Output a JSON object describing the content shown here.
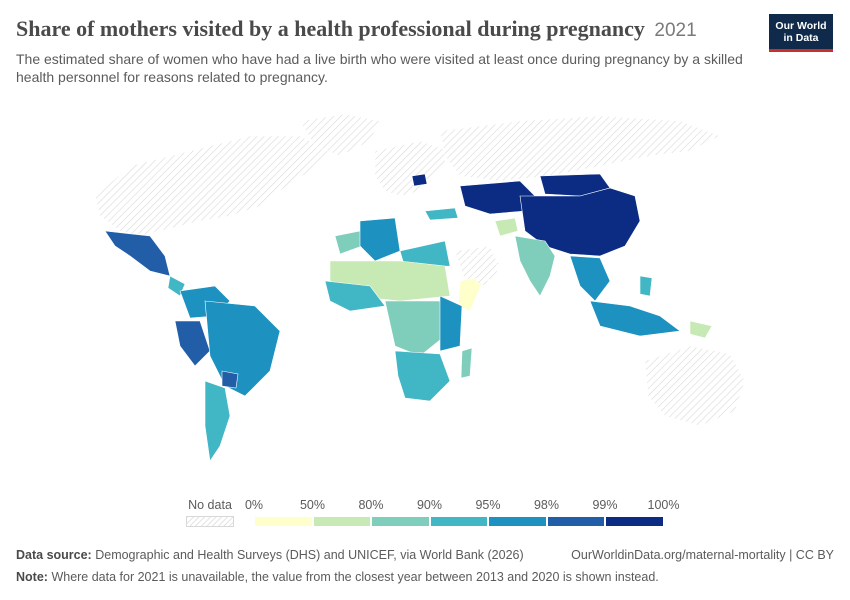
{
  "header": {
    "title": "Share of mothers visited by a health professional during pregnancy",
    "year": "2021",
    "subtitle": "The estimated share of women who have had a live birth who were visited at least once during pregnancy by a skilled health personnel for reasons related to pregnancy."
  },
  "logo": {
    "line1": "Our World",
    "line2": "in Data"
  },
  "legend": {
    "no_data_label": "No data",
    "ticks": [
      "0%",
      "50%",
      "80%",
      "90%",
      "95%",
      "98%",
      "99%",
      "100%"
    ],
    "bins": [
      {
        "from": 0,
        "to": 50,
        "color": "#ffffcc"
      },
      {
        "from": 50,
        "to": 80,
        "color": "#c7e9b4"
      },
      {
        "from": 80,
        "to": 90,
        "color": "#7fcdbb"
      },
      {
        "from": 90,
        "to": 95,
        "color": "#41b6c4"
      },
      {
        "from": 95,
        "to": 98,
        "color": "#1d91c0"
      },
      {
        "from": 98,
        "to": 99,
        "color": "#225ea8"
      },
      {
        "from": 99,
        "to": 100,
        "color": "#0c2c84"
      }
    ],
    "no_data_color": "#e6e6e6"
  },
  "chart_data": {
    "type": "choropleth",
    "unit": "%",
    "regions": [
      {
        "name": "China",
        "bin": "99-100%"
      },
      {
        "name": "Mongolia",
        "bin": "99-100%"
      },
      {
        "name": "Kazakhstan",
        "bin": "99-100%"
      },
      {
        "name": "Belarus",
        "bin": "99-100%"
      },
      {
        "name": "Mexico",
        "bin": "98-99%"
      },
      {
        "name": "Peru",
        "bin": "98-99%"
      },
      {
        "name": "Paraguay",
        "bin": "98-99%"
      },
      {
        "name": "Brazil",
        "bin": "95-98%"
      },
      {
        "name": "Colombia",
        "bin": "95-98%"
      },
      {
        "name": "Algeria",
        "bin": "95-98%"
      },
      {
        "name": "Indonesia",
        "bin": "95-98%"
      },
      {
        "name": "Argentina",
        "bin": "90-95%"
      },
      {
        "name": "South Africa",
        "bin": "90-95%"
      },
      {
        "name": "India",
        "bin": "80-90%"
      },
      {
        "name": "Morocco",
        "bin": "80-90%"
      },
      {
        "name": "Madagascar",
        "bin": "80-90%"
      },
      {
        "name": "Afghanistan",
        "bin": "50-80%"
      },
      {
        "name": "Chad",
        "bin": "50-80%"
      },
      {
        "name": "Papua New Guinea",
        "bin": "50-80%"
      },
      {
        "name": "Somalia",
        "bin": "0-50%"
      }
    ]
  },
  "footer": {
    "source_label": "Data source:",
    "source_text": "Demographic and Health Surveys (DHS) and UNICEF, via World Bank (2026)",
    "source_right": "OurWorldinData.org/maternal-mortality | CC BY",
    "note_label": "Note:",
    "note_text": "Where data for 2021 is unavailable, the value from the closest year between 2013 and 2020 is shown instead."
  }
}
